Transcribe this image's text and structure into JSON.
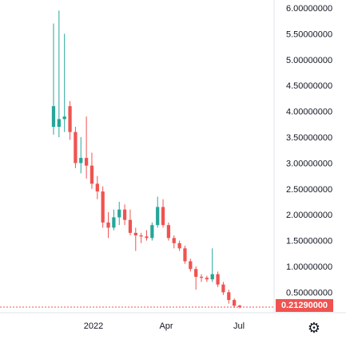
{
  "chart_data": {
    "type": "candlestick",
    "y_axis_labels": [
      "6.00000000",
      "5.50000000",
      "5.00000000",
      "4.50000000",
      "4.00000000",
      "3.50000000",
      "3.00000000",
      "2.50000000",
      "2.00000000",
      "1.50000000",
      "1.00000000",
      "0.50000000"
    ],
    "ylim": [
      0.1,
      6.0
    ],
    "x_axis_labels": [
      "2022",
      "Apr",
      "Jul"
    ],
    "last_price_label": "0.21290000",
    "last_price": 0.2129,
    "colors": {
      "up": "#26a69a",
      "down": "#ef5350",
      "text": "#131722",
      "border": "#e0e3eb"
    },
    "candles": [
      {
        "o": 3.7,
        "h": 5.7,
        "l": 3.55,
        "c": 4.1
      },
      {
        "o": 3.7,
        "h": 5.95,
        "l": 3.5,
        "c": 3.85
      },
      {
        "o": 3.85,
        "h": 5.5,
        "l": 3.6,
        "c": 3.9
      },
      {
        "o": 4.1,
        "h": 4.2,
        "l": 3.45,
        "c": 3.6
      },
      {
        "o": 3.6,
        "h": 3.7,
        "l": 2.9,
        "c": 3.0
      },
      {
        "o": 3.0,
        "h": 3.5,
        "l": 2.8,
        "c": 3.1
      },
      {
        "o": 3.1,
        "h": 3.9,
        "l": 2.7,
        "c": 2.95
      },
      {
        "o": 2.95,
        "h": 3.2,
        "l": 2.5,
        "c": 2.6
      },
      {
        "o": 2.6,
        "h": 2.75,
        "l": 2.3,
        "c": 2.45
      },
      {
        "o": 2.45,
        "h": 2.55,
        "l": 1.75,
        "c": 1.85
      },
      {
        "o": 1.85,
        "h": 2.05,
        "l": 1.55,
        "c": 1.75
      },
      {
        "o": 1.75,
        "h": 2.1,
        "l": 1.7,
        "c": 1.95
      },
      {
        "o": 1.95,
        "h": 2.25,
        "l": 1.8,
        "c": 2.1
      },
      {
        "o": 2.1,
        "h": 2.2,
        "l": 1.8,
        "c": 1.9
      },
      {
        "o": 1.9,
        "h": 2.1,
        "l": 1.6,
        "c": 1.65
      },
      {
        "o": 1.65,
        "h": 1.75,
        "l": 1.3,
        "c": 1.6
      },
      {
        "o": 1.6,
        "h": 1.65,
        "l": 1.45,
        "c": 1.58
      },
      {
        "o": 1.58,
        "h": 1.7,
        "l": 1.5,
        "c": 1.55
      },
      {
        "o": 1.55,
        "h": 1.85,
        "l": 1.5,
        "c": 1.8
      },
      {
        "o": 1.8,
        "h": 2.35,
        "l": 1.75,
        "c": 2.15
      },
      {
        "o": 2.15,
        "h": 2.3,
        "l": 1.75,
        "c": 1.8
      },
      {
        "o": 1.8,
        "h": 1.85,
        "l": 1.5,
        "c": 1.55
      },
      {
        "o": 1.55,
        "h": 1.6,
        "l": 1.35,
        "c": 1.45
      },
      {
        "o": 1.45,
        "h": 1.5,
        "l": 1.3,
        "c": 1.35
      },
      {
        "o": 1.35,
        "h": 1.4,
        "l": 1.05,
        "c": 1.1
      },
      {
        "o": 1.1,
        "h": 1.15,
        "l": 0.9,
        "c": 0.95
      },
      {
        "o": 0.95,
        "h": 1.0,
        "l": 0.55,
        "c": 0.8
      },
      {
        "o": 0.8,
        "h": 0.85,
        "l": 0.7,
        "c": 0.78
      },
      {
        "o": 0.78,
        "h": 0.82,
        "l": 0.7,
        "c": 0.75
      },
      {
        "o": 0.75,
        "h": 1.35,
        "l": 0.7,
        "c": 0.85
      },
      {
        "o": 0.85,
        "h": 0.9,
        "l": 0.6,
        "c": 0.65
      },
      {
        "o": 0.65,
        "h": 0.7,
        "l": 0.45,
        "c": 0.5
      },
      {
        "o": 0.5,
        "h": 0.55,
        "l": 0.28,
        "c": 0.35
      },
      {
        "o": 0.35,
        "h": 0.38,
        "l": 0.2,
        "c": 0.24
      },
      {
        "o": 0.24,
        "h": 0.26,
        "l": 0.19,
        "c": 0.2129
      }
    ]
  }
}
